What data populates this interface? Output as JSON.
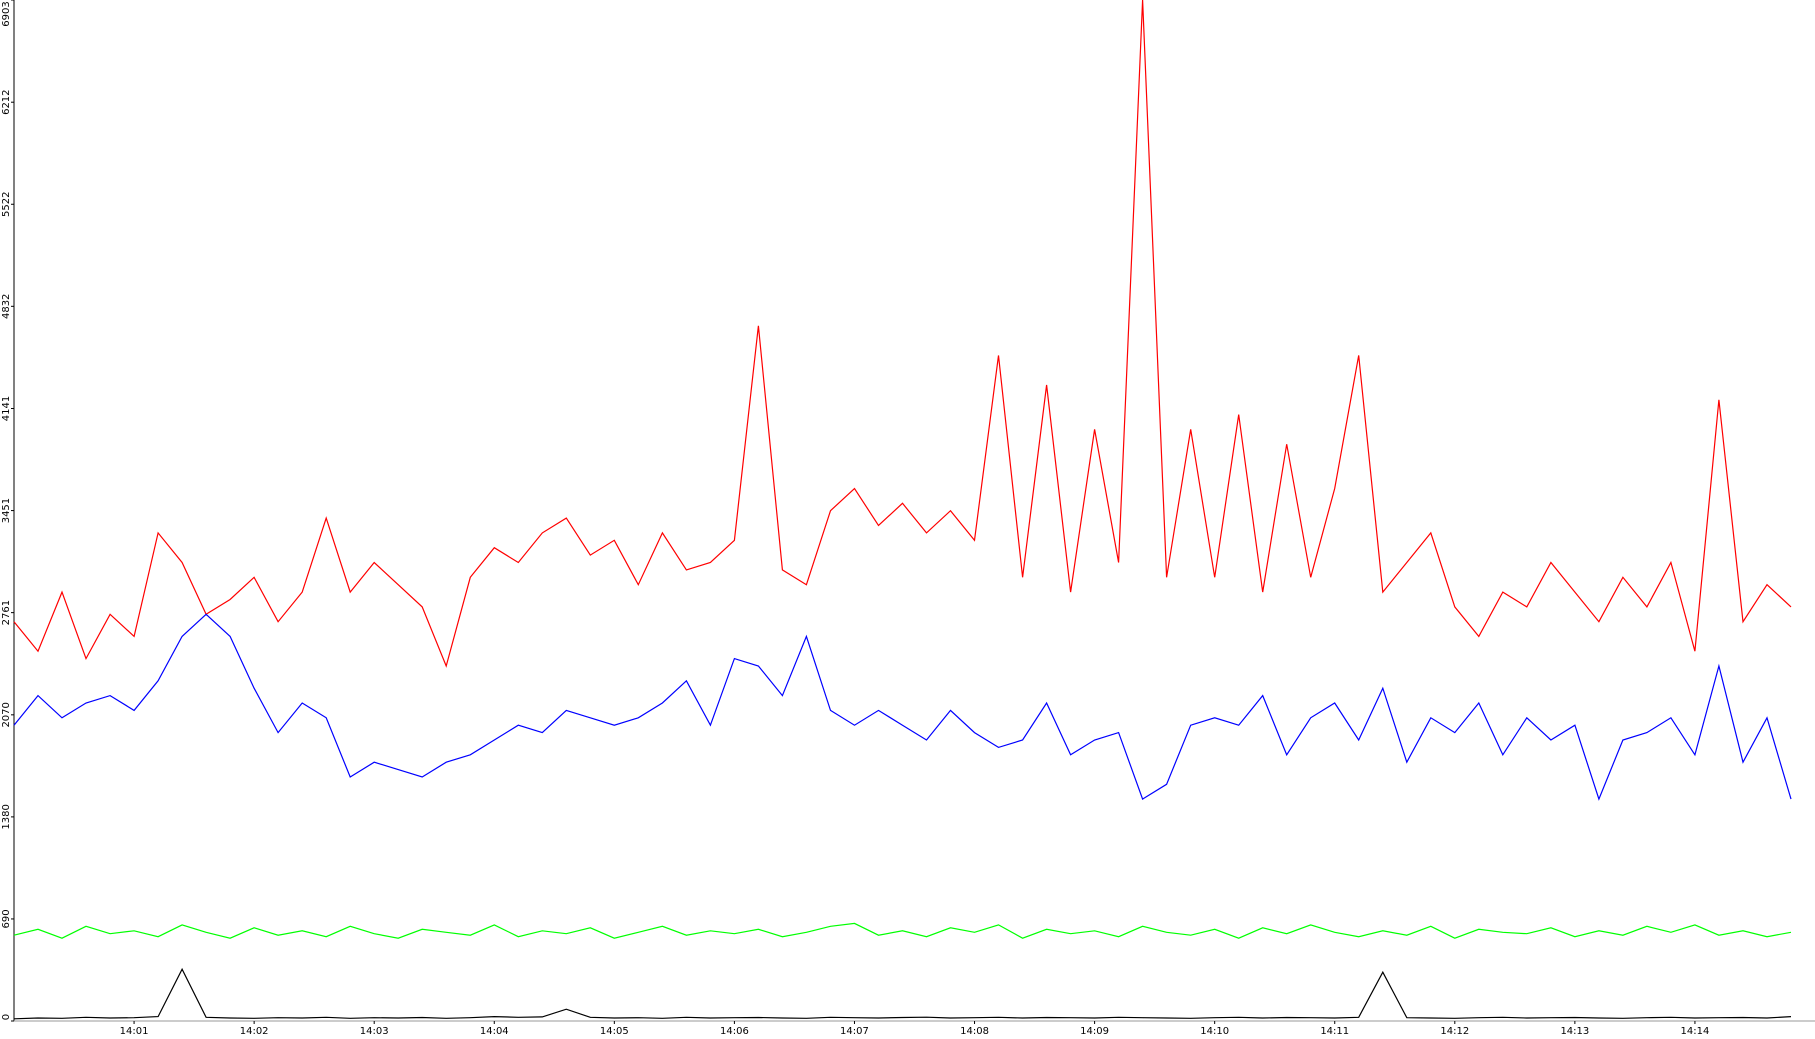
{
  "chart_data": {
    "type": "line",
    "x": [
      0,
      0.2,
      0.4,
      0.6,
      0.8,
      1,
      1.2,
      1.4,
      1.6,
      1.8,
      2,
      2.2,
      2.4,
      2.6,
      2.8,
      3,
      3.2,
      3.4,
      3.6,
      3.8,
      4,
      4.2,
      4.4,
      4.6,
      4.8,
      5,
      5.2,
      5.4,
      5.6,
      5.8,
      6,
      6.2,
      6.4,
      6.6,
      6.8,
      7,
      7.2,
      7.4,
      7.6,
      7.8,
      8,
      8.2,
      8.4,
      8.6,
      8.8,
      9,
      9.2,
      9.4,
      9.6,
      9.8,
      10,
      10.2,
      10.4,
      10.6,
      10.8,
      11,
      11.2,
      11.4,
      11.6,
      11.8,
      12,
      12.2,
      12.4,
      12.6,
      12.8,
      13,
      13.2,
      13.4,
      13.6,
      13.8,
      14,
      14.2,
      14.4,
      14.6,
      14.8
    ],
    "xlim": [
      0,
      15
    ],
    "xticks": [
      {
        "value": 1,
        "label": "14:01"
      },
      {
        "value": 2,
        "label": "14:02"
      },
      {
        "value": 3,
        "label": "14:03"
      },
      {
        "value": 4,
        "label": "14:04"
      },
      {
        "value": 5,
        "label": "14:05"
      },
      {
        "value": 6,
        "label": "14:06"
      },
      {
        "value": 7,
        "label": "14:07"
      },
      {
        "value": 8,
        "label": "14:08"
      },
      {
        "value": 9,
        "label": "14:09"
      },
      {
        "value": 10,
        "label": "14:10"
      },
      {
        "value": 11,
        "label": "14:11"
      },
      {
        "value": 12,
        "label": "14:12"
      },
      {
        "value": 13,
        "label": "14:13"
      },
      {
        "value": 14,
        "label": "14:14"
      }
    ],
    "ylim": [
      0,
      6903
    ],
    "yticks": [
      0,
      690,
      1380,
      2070,
      2761,
      3451,
      4141,
      4832,
      5522,
      6212,
      6903
    ],
    "grid": false,
    "series": [
      {
        "color": "#ff0000",
        "values": [
          2700,
          2500,
          2900,
          2450,
          2750,
          2600,
          3300,
          3100,
          2750,
          2850,
          3000,
          2700,
          2900,
          3400,
          2900,
          3100,
          2950,
          2800,
          2400,
          3000,
          3200,
          3100,
          3300,
          3400,
          3150,
          3250,
          2950,
          3300,
          3050,
          3100,
          3250,
          4700,
          3050,
          2950,
          3450,
          3600,
          3350,
          3500,
          3300,
          3450,
          3250,
          4500,
          3000,
          4300,
          2900,
          4000,
          3100,
          6903,
          3000,
          4000,
          3000,
          4100,
          2900,
          3900,
          3000,
          3600,
          4500,
          2900,
          3100,
          3300,
          2800,
          2600,
          2900,
          2800,
          3100,
          2900,
          2700,
          3000,
          2800,
          3100,
          2500,
          4200,
          2700,
          2950,
          2800
        ]
      },
      {
        "color": "#0000ff",
        "values": [
          2000,
          2200,
          2050,
          2150,
          2200,
          2100,
          2300,
          2600,
          2750,
          2600,
          2250,
          1950,
          2150,
          2050,
          1650,
          1750,
          1700,
          1650,
          1750,
          1800,
          1900,
          2000,
          1950,
          2100,
          2050,
          2000,
          2050,
          2150,
          2300,
          2000,
          2450,
          2400,
          2200,
          2600,
          2100,
          2000,
          2100,
          2000,
          1900,
          2100,
          1950,
          1850,
          1900,
          2150,
          1800,
          1900,
          1950,
          1500,
          1600,
          2000,
          2050,
          2000,
          2200,
          1800,
          2050,
          2150,
          1900,
          2250,
          1750,
          2050,
          1950,
          2150,
          1800,
          2050,
          1900,
          2000,
          1500,
          1900,
          1950,
          2050,
          1800,
          2400,
          1750,
          2050,
          1500
        ]
      },
      {
        "color": "#00ff00",
        "values": [
          580,
          620,
          560,
          640,
          590,
          610,
          570,
          650,
          600,
          560,
          630,
          580,
          610,
          570,
          640,
          590,
          560,
          620,
          600,
          580,
          650,
          570,
          610,
          590,
          630,
          560,
          600,
          640,
          580,
          610,
          590,
          620,
          570,
          600,
          640,
          660,
          580,
          610,
          570,
          630,
          600,
          650,
          560,
          620,
          590,
          610,
          570,
          640,
          600,
          580,
          620,
          560,
          630,
          590,
          650,
          600,
          570,
          610,
          580,
          640,
          560,
          620,
          600,
          590,
          630,
          570,
          610,
          580,
          640,
          600,
          650,
          580,
          610,
          570,
          600
        ]
      },
      {
        "color": "#000000",
        "values": [
          15,
          20,
          18,
          25,
          20,
          22,
          30,
          350,
          25,
          20,
          18,
          22,
          20,
          25,
          18,
          22,
          20,
          24,
          18,
          22,
          30,
          25,
          28,
          80,
          25,
          20,
          22,
          18,
          25,
          20,
          22,
          24,
          20,
          18,
          25,
          22,
          20,
          24,
          26,
          20,
          22,
          25,
          20,
          24,
          22,
          20,
          25,
          22,
          20,
          18,
          22,
          25,
          20,
          24,
          22,
          20,
          25,
          330,
          22,
          20,
          18,
          22,
          25,
          20,
          22,
          24,
          20,
          18,
          22,
          25,
          20,
          22,
          24,
          20,
          30
        ]
      }
    ]
  }
}
